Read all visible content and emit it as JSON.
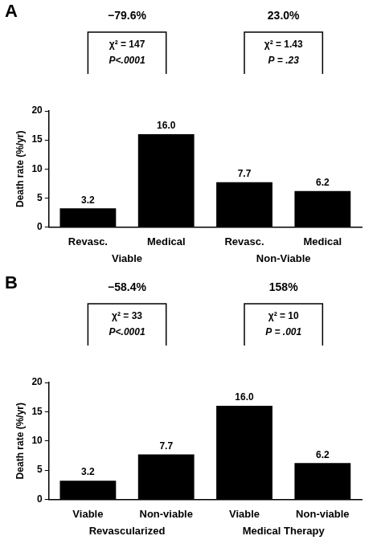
{
  "chart_data": [
    {
      "type": "bar",
      "title": "A",
      "categories": [
        "Revasc.",
        "Medical",
        "Revasc.",
        "Medical"
      ],
      "x_groups": [
        "Viable",
        "Non-Viable"
      ],
      "values": [
        3.2,
        16,
        7.7,
        6.2
      ],
      "value_labels": [
        "3.2",
        "16.0",
        "7.7",
        "6.2"
      ],
      "color": "#000000",
      "ylabel": "Death rate (%/yr)",
      "ylim": [
        0,
        20
      ],
      "yticks": [
        0,
        5,
        10,
        15,
        20
      ],
      "grid": false,
      "data_labels": true,
      "annotations": [
        {
          "text": "−79.6%",
          "stat": "χ² = 147",
          "p": "P<.0001"
        },
        {
          "text": "23.0%",
          "stat": "χ² = 1.43",
          "p": "P = .23"
        }
      ]
    },
    {
      "type": "bar",
      "title": "B",
      "categories": [
        "Viable",
        "Non-viable",
        "Viable",
        "Non-viable"
      ],
      "x_groups": [
        "Revascularized",
        "Medical Therapy"
      ],
      "values": [
        3.2,
        7.7,
        16,
        6.2
      ],
      "value_labels": [
        "3.2",
        "7.7",
        "16.0",
        "6.2"
      ],
      "color": "#000000",
      "ylabel": "Death rate (%/yr)",
      "ylim": [
        0,
        20
      ],
      "yticks": [
        0,
        5,
        10,
        15,
        20
      ],
      "grid": false,
      "data_labels": true,
      "annotations": [
        {
          "text": "−58.4%",
          "stat": "χ² = 33",
          "p": "P<.0001"
        },
        {
          "text": "158%",
          "stat": "χ² = 10",
          "p": "P = .001"
        }
      ]
    }
  ]
}
